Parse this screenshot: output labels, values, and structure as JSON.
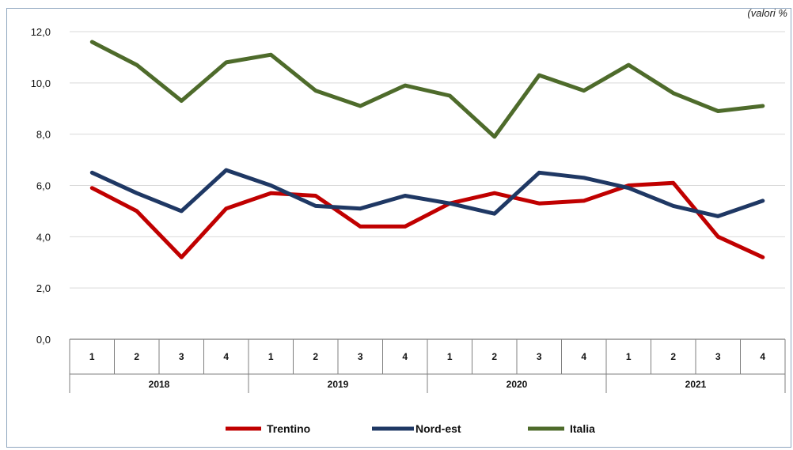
{
  "unit_note": "(valori %",
  "chart_data": {
    "type": "line",
    "title": "",
    "xlabel": "",
    "ylabel": "",
    "ylim": [
      0,
      12
    ],
    "y_ticks": [
      "0,0",
      "2,0",
      "4,0",
      "6,0",
      "8,0",
      "10,0",
      "12,0"
    ],
    "grid": true,
    "legend_position": "bottom",
    "x_quarters": [
      "1",
      "2",
      "3",
      "4",
      "1",
      "2",
      "3",
      "4",
      "1",
      "2",
      "3",
      "4",
      "1",
      "2",
      "3",
      "4"
    ],
    "x_years": [
      "2018",
      "2019",
      "2020",
      "2021"
    ],
    "series": [
      {
        "name": "Trentino",
        "color": "#c00000",
        "values": [
          5.9,
          5.0,
          3.2,
          5.1,
          5.7,
          5.6,
          4.4,
          4.4,
          5.3,
          5.7,
          5.3,
          5.4,
          6.0,
          6.1,
          4.0,
          3.2
        ]
      },
      {
        "name": "Nord-est",
        "color": "#1f3864",
        "values": [
          6.5,
          5.7,
          5.0,
          6.6,
          6.0,
          5.2,
          5.1,
          5.6,
          5.3,
          4.9,
          6.5,
          6.3,
          5.9,
          5.2,
          4.8,
          5.4
        ]
      },
      {
        "name": "Italia",
        "color": "#4e6b2b",
        "values": [
          11.6,
          10.7,
          9.3,
          10.8,
          11.1,
          9.7,
          9.1,
          9.9,
          9.5,
          7.9,
          10.3,
          9.7,
          10.7,
          9.6,
          8.9,
          9.1
        ]
      }
    ]
  }
}
